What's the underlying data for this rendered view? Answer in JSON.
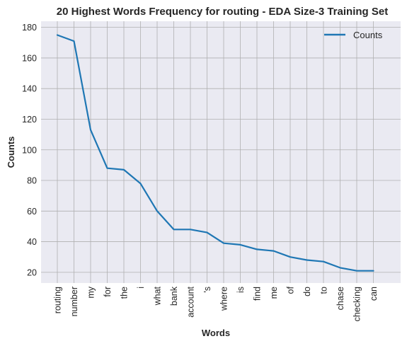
{
  "chart_data": {
    "type": "line",
    "title": "20 Highest Words Frequency for routing - EDA Size-3 Training Set",
    "xlabel": "Words",
    "ylabel": "Counts",
    "categories": [
      "routing",
      "number",
      "my",
      "for",
      "the",
      "i",
      "what",
      "bank",
      "account",
      "'s",
      "where",
      "is",
      "find",
      "me",
      "of",
      "do",
      "to",
      "chase",
      "checking",
      "can"
    ],
    "series": [
      {
        "name": "Counts",
        "values": [
          175,
          171,
          113,
          88,
          87,
          78,
          60,
          48,
          48,
          46,
          39,
          38,
          35,
          34,
          30,
          28,
          27,
          23,
          21,
          21
        ]
      }
    ],
    "yticks": [
      20,
      40,
      60,
      80,
      100,
      120,
      140,
      160,
      180
    ],
    "ylim": [
      13,
      184
    ],
    "grid": true,
    "legend_position": "top-right",
    "colors": {
      "line": "#1f77b4",
      "plot_background": "#eaeaf2",
      "grid": "#b0b0b0"
    }
  }
}
